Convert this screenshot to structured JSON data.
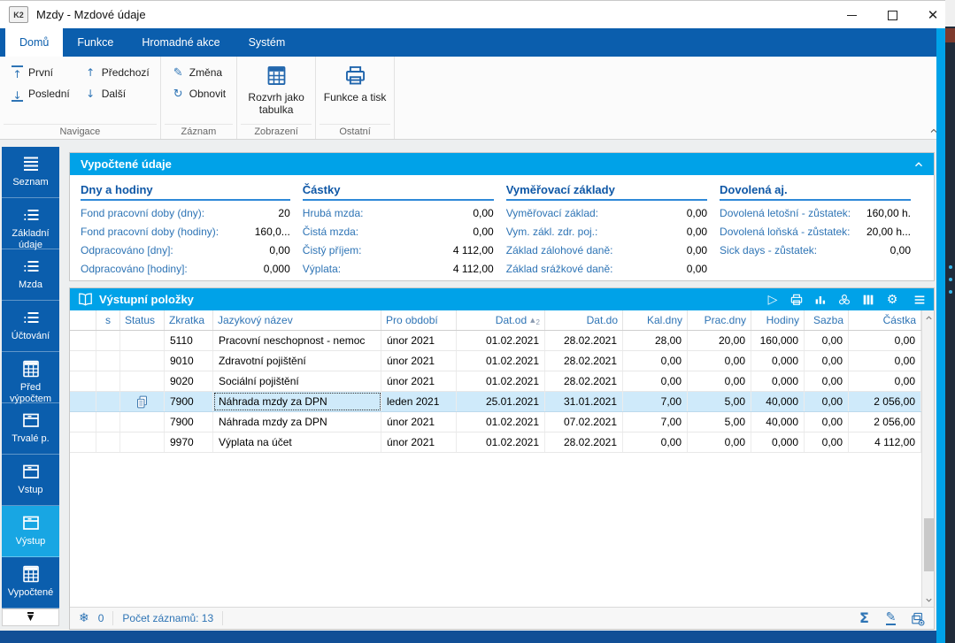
{
  "window": {
    "title": "Mzdy - Mzdové údaje",
    "logo": "K2"
  },
  "colors": {
    "ribbon_blue": "#0b5ead",
    "accent_cyan": "#00a2e8",
    "selected_row": "#cfeafa",
    "label_blue": "#2e74b5"
  },
  "ribbon": {
    "tabs": [
      {
        "label": "Domů",
        "active": true
      },
      {
        "label": "Funkce",
        "active": false
      },
      {
        "label": "Hromadné akce",
        "active": false
      },
      {
        "label": "Systém",
        "active": false
      }
    ],
    "groups": [
      {
        "label": "Navigace",
        "type": "small",
        "buttons": [
          {
            "label": "První",
            "icon": "first"
          },
          {
            "label": "Poslední",
            "icon": "last"
          },
          {
            "label": "Předchozí",
            "icon": "arrow-up"
          },
          {
            "label": "Další",
            "icon": "arrow-down"
          }
        ]
      },
      {
        "label": "Záznam",
        "type": "small",
        "buttons": [
          {
            "label": "Změna",
            "icon": "pencil"
          },
          {
            "label": "Obnovit",
            "icon": "refresh"
          }
        ]
      },
      {
        "label": "Zobrazení",
        "type": "big",
        "buttons": [
          {
            "label": "Rozvrh jako tabulka",
            "icon": "table-grid"
          }
        ]
      },
      {
        "label": "Ostatní",
        "type": "big",
        "buttons": [
          {
            "label": "Funkce a tisk",
            "icon": "printer"
          }
        ]
      }
    ]
  },
  "sidebar": {
    "items": [
      {
        "label": "Seznam",
        "icon": "list",
        "active": false
      },
      {
        "label": "Základní údaje",
        "icon": "list-dots",
        "active": false
      },
      {
        "label": "Mzda",
        "icon": "list-dots",
        "active": false
      },
      {
        "label": "Účtování",
        "icon": "list-dots",
        "active": false
      },
      {
        "label": "Před výpočtem",
        "icon": "calc-grid",
        "active": false
      },
      {
        "label": "Trvalé p.",
        "icon": "box",
        "active": false
      },
      {
        "label": "Vstup",
        "icon": "box",
        "active": false
      },
      {
        "label": "Výstup",
        "icon": "box",
        "active": true
      },
      {
        "label": "Vypočtené",
        "icon": "calc-grid",
        "active": false
      }
    ]
  },
  "calc_panel": {
    "title": "Vypočtené údaje",
    "sections": [
      {
        "heading": "Dny a hodiny",
        "rows": [
          {
            "label": "Fond pracovní doby (dny):",
            "value": "20"
          },
          {
            "label": "Fond pracovní doby (hodiny):",
            "value": "160,0..."
          },
          {
            "label": "Odpracováno [dny]:",
            "value": "0,00"
          },
          {
            "label": "Odpracováno [hodiny]:",
            "value": "0,000"
          }
        ]
      },
      {
        "heading": "Částky",
        "rows": [
          {
            "label": "Hrubá mzda:",
            "value": "0,00"
          },
          {
            "label": "Čistá mzda:",
            "value": "0,00"
          },
          {
            "label": "Čistý příjem:",
            "value": "4 112,00"
          },
          {
            "label": "Výplata:",
            "value": "4 112,00"
          }
        ]
      },
      {
        "heading": "Vyměřovací základy",
        "rows": [
          {
            "label": "Vyměřovací základ:",
            "value": "0,00"
          },
          {
            "label": "Vym. zákl. zdr. poj.:",
            "value": "0,00"
          },
          {
            "label": "Základ zálohové daně:",
            "value": "0,00"
          },
          {
            "label": "Základ srážkové daně:",
            "value": "0,00"
          }
        ]
      },
      {
        "heading": "Dovolená aj.",
        "rows": [
          {
            "label": "Dovolená letošní - zůstatek:",
            "value": "160,00 h."
          },
          {
            "label": "Dovolená loňská - zůstatek:",
            "value": "20,00 h..."
          },
          {
            "label": "Sick days - zůstatek:",
            "value": "0,00"
          }
        ]
      }
    ]
  },
  "table_panel": {
    "title": "Výstupní položky",
    "toolbar_icons": [
      "play",
      "printer",
      "chart",
      "cluster",
      "columns",
      "gear",
      "menu"
    ],
    "columns": [
      {
        "label": "",
        "align": "c"
      },
      {
        "label": "s",
        "align": "c"
      },
      {
        "label": "Status",
        "align": "l"
      },
      {
        "label": "Zkratka",
        "align": "l"
      },
      {
        "label": "Jazykový název",
        "align": "l"
      },
      {
        "label": "Pro období",
        "align": "l"
      },
      {
        "label": "Dat.od",
        "align": "r",
        "sort": "asc",
        "sort_order": "2"
      },
      {
        "label": "Dat.do",
        "align": "r"
      },
      {
        "label": "Kal.dny",
        "align": "r"
      },
      {
        "label": "Prac.dny",
        "align": "r"
      },
      {
        "label": "Hodiny",
        "align": "r"
      },
      {
        "label": "Sazba",
        "align": "r"
      },
      {
        "label": "Částka",
        "align": "r"
      }
    ],
    "rows": [
      {
        "selected": false,
        "status_icon": false,
        "cells": [
          "5110",
          "Pracovní neschopnost - nemoc",
          "únor 2021",
          "01.02.2021",
          "28.02.2021",
          "28,00",
          "20,00",
          "160,000",
          "0,00",
          "0,00"
        ]
      },
      {
        "selected": false,
        "status_icon": false,
        "cells": [
          "9010",
          "Zdravotní pojištění",
          "únor 2021",
          "01.02.2021",
          "28.02.2021",
          "0,00",
          "0,00",
          "0,000",
          "0,00",
          "0,00"
        ]
      },
      {
        "selected": false,
        "status_icon": false,
        "cells": [
          "9020",
          "Sociální pojištění",
          "únor 2021",
          "01.02.2021",
          "28.02.2021",
          "0,00",
          "0,00",
          "0,000",
          "0,00",
          "0,00"
        ]
      },
      {
        "selected": true,
        "status_icon": true,
        "cells": [
          "7900",
          "Náhrada mzdy za DPN",
          "leden 2021",
          "25.01.2021",
          "31.01.2021",
          "7,00",
          "5,00",
          "40,000",
          "0,00",
          "2 056,00"
        ]
      },
      {
        "selected": false,
        "status_icon": false,
        "cells": [
          "7900",
          "Náhrada mzdy za DPN",
          "únor 2021",
          "01.02.2021",
          "07.02.2021",
          "7,00",
          "5,00",
          "40,000",
          "0,00",
          "2 056,00"
        ]
      },
      {
        "selected": false,
        "status_icon": false,
        "cells": [
          "9970",
          "Výplata na účet",
          "únor 2021",
          "01.02.2021",
          "28.02.2021",
          "0,00",
          "0,00",
          "0,000",
          "0,00",
          "4 112,00"
        ]
      }
    ],
    "footer": {
      "pending_count": "0",
      "records_label": "Počet záznamů: 13",
      "icons": [
        "sigma",
        "edit",
        "copy-plus"
      ]
    }
  }
}
